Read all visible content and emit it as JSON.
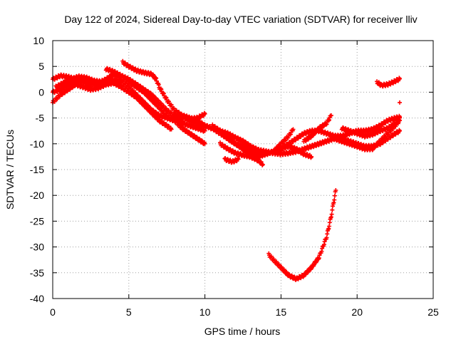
{
  "chart_data": {
    "type": "scatter",
    "title": "Day 122 of 2024, Sidereal Day-to-day VTEC variation (SDTVAR) for receiver lliv",
    "xlabel": "GPS time / hours",
    "ylabel": "SDTVAR / TECUs",
    "xlim": [
      0,
      25
    ],
    "ylim": [
      -40,
      10
    ],
    "xticks": [
      0,
      5,
      10,
      15,
      20,
      25
    ],
    "yticks": [
      10,
      5,
      0,
      -5,
      -10,
      -15,
      -20,
      -25,
      -30,
      -35,
      -40
    ],
    "xtick_labels": [
      "0",
      "5",
      "10",
      "15",
      "20",
      "25"
    ],
    "ytick_labels": [
      "10",
      "5",
      "0",
      "-5",
      "-10",
      "-15",
      "-20",
      "-25",
      "-30",
      "-35",
      "-40"
    ],
    "grid": true,
    "marker": "+",
    "marker_color": "#ff0000",
    "series": [
      {
        "name": "track-a",
        "points": [
          [
            0,
            2.5
          ],
          [
            0.5,
            3.2
          ],
          [
            1,
            3.0
          ],
          [
            1.5,
            2.5
          ],
          [
            2,
            2.0
          ],
          [
            2.5,
            1.5
          ],
          [
            3,
            1.8
          ],
          [
            3.5,
            2.5
          ],
          [
            4,
            3.5
          ],
          [
            4.5,
            3.0
          ],
          [
            5,
            2.0
          ],
          [
            5.5,
            1.0
          ],
          [
            6,
            0
          ],
          [
            6.5,
            -1.5
          ],
          [
            7,
            -3
          ],
          [
            7.5,
            -4.5
          ],
          [
            8,
            -5.5
          ],
          [
            8.5,
            -7
          ],
          [
            9,
            -8
          ],
          [
            9.5,
            -9
          ],
          [
            10,
            -10
          ]
        ]
      },
      {
        "name": "track-b",
        "points": [
          [
            0,
            0
          ],
          [
            0.5,
            0.5
          ],
          [
            1,
            1.5
          ],
          [
            1.5,
            2.2
          ],
          [
            2,
            2.5
          ],
          [
            2.5,
            2.0
          ],
          [
            3,
            1.5
          ],
          [
            3.5,
            2.0
          ],
          [
            4,
            2.5
          ],
          [
            4.5,
            2.0
          ],
          [
            5,
            1.0
          ],
          [
            5.5,
            -0.5
          ],
          [
            6,
            -2
          ],
          [
            6.5,
            -3.5
          ],
          [
            7,
            -4.5
          ],
          [
            7.5,
            -5
          ],
          [
            8,
            -5.5
          ],
          [
            8.5,
            -6
          ],
          [
            9,
            -6.5
          ],
          [
            9.5,
            -7
          ],
          [
            10,
            -7.5
          ]
        ]
      },
      {
        "name": "track-c",
        "points": [
          [
            0,
            -2
          ],
          [
            0.5,
            -0.5
          ],
          [
            1,
            0.5
          ],
          [
            1.5,
            1.5
          ],
          [
            2,
            1.0
          ],
          [
            2.5,
            0.5
          ],
          [
            3,
            0.8
          ],
          [
            3.5,
            1.5
          ],
          [
            4,
            1.8
          ],
          [
            4.5,
            1.0
          ],
          [
            5,
            0
          ],
          [
            5.5,
            -1
          ],
          [
            6,
            -2.5
          ],
          [
            6.5,
            -4
          ],
          [
            7,
            -5.5
          ],
          [
            7.5,
            -6.5
          ],
          [
            7.8,
            -7.2
          ]
        ]
      },
      {
        "name": "track-d",
        "points": [
          [
            0.2,
            1.0
          ],
          [
            0.7,
            1.8
          ],
          [
            1.2,
            2.5
          ],
          [
            1.7,
            3.0
          ],
          [
            2.2,
            2.8
          ],
          [
            2.7,
            2.2
          ],
          [
            3.2,
            2.0
          ]
        ]
      },
      {
        "name": "track-e",
        "points": [
          [
            3.5,
            4.5
          ],
          [
            4,
            4.0
          ],
          [
            4.5,
            3.2
          ],
          [
            5,
            2.5
          ],
          [
            5.5,
            1.5
          ],
          [
            6,
            0.5
          ],
          [
            6.5,
            -0.5
          ],
          [
            7,
            -2
          ],
          [
            7.5,
            -3.5
          ],
          [
            8,
            -4.5
          ],
          [
            8.5,
            -5
          ],
          [
            9,
            -5.2
          ],
          [
            9.5,
            -5
          ],
          [
            10,
            -4.2
          ]
        ]
      },
      {
        "name": "track-f",
        "points": [
          [
            4.6,
            5.8
          ],
          [
            5,
            5.0
          ],
          [
            5.5,
            4.2
          ],
          [
            6,
            3.8
          ],
          [
            6.5,
            3.5
          ],
          [
            6.8,
            2.5
          ],
          [
            7,
            1.0
          ],
          [
            7.5,
            -1.5
          ],
          [
            8,
            -3.5
          ],
          [
            8.5,
            -4.5
          ],
          [
            9,
            -5.5
          ],
          [
            9.5,
            -6
          ],
          [
            10,
            -6.5
          ],
          [
            10.5,
            -7
          ],
          [
            11,
            -7.5
          ],
          [
            11.5,
            -8
          ],
          [
            12,
            -8.8
          ],
          [
            12.5,
            -9.5
          ],
          [
            13,
            -10.5
          ],
          [
            13.5,
            -11.2
          ],
          [
            14,
            -11.5
          ]
        ]
      },
      {
        "name": "track-g",
        "points": [
          [
            8.5,
            -4.5
          ],
          [
            9,
            -5.0
          ],
          [
            9.5,
            -5.5
          ],
          [
            10,
            -6.5
          ],
          [
            10.5,
            -7
          ],
          [
            11,
            -8
          ],
          [
            11.5,
            -9
          ],
          [
            12,
            -10
          ],
          [
            12.5,
            -11
          ],
          [
            13,
            -12
          ],
          [
            13.5,
            -12.5
          ],
          [
            14,
            -12
          ],
          [
            14.5,
            -11.5
          ],
          [
            15,
            -11
          ],
          [
            15.5,
            -10.5
          ],
          [
            16,
            -11
          ],
          [
            16.5,
            -12
          ],
          [
            17,
            -12.5
          ]
        ]
      },
      {
        "name": "track-h",
        "points": [
          [
            10.5,
            -6.5
          ],
          [
            11,
            -7.5
          ],
          [
            11.5,
            -9
          ],
          [
            12,
            -10
          ],
          [
            12.5,
            -10.5
          ],
          [
            13,
            -11.5
          ],
          [
            13.5,
            -12
          ],
          [
            14,
            -12
          ],
          [
            14.5,
            -11.5
          ],
          [
            15,
            -10
          ],
          [
            15.5,
            -8.5
          ],
          [
            15.8,
            -7.2
          ]
        ]
      },
      {
        "name": "track-i",
        "points": [
          [
            11,
            -10
          ],
          [
            11.5,
            -11
          ],
          [
            12,
            -11.8
          ],
          [
            12.5,
            -12.2
          ],
          [
            13,
            -12.5
          ],
          [
            13.5,
            -13.2
          ],
          [
            13.8,
            -14
          ]
        ]
      },
      {
        "name": "track-j",
        "points": [
          [
            11.3,
            -13
          ],
          [
            11.8,
            -13.5
          ],
          [
            12.2,
            -13
          ]
        ]
      },
      {
        "name": "track-k",
        "points": [
          [
            14,
            -11.5
          ],
          [
            14.5,
            -11.8
          ],
          [
            15,
            -12
          ],
          [
            15.5,
            -11.8
          ],
          [
            16,
            -11.5
          ],
          [
            16.5,
            -11
          ],
          [
            17,
            -10.5
          ],
          [
            17.5,
            -10
          ],
          [
            18,
            -9.5
          ],
          [
            18.5,
            -9
          ],
          [
            19,
            -9
          ],
          [
            19.5,
            -9.5
          ],
          [
            20,
            -10
          ],
          [
            20.5,
            -10.5
          ],
          [
            21,
            -10.5
          ],
          [
            21.5,
            -10
          ],
          [
            22,
            -9
          ],
          [
            22.5,
            -8
          ],
          [
            22.8,
            -7.5
          ]
        ]
      },
      {
        "name": "track-l",
        "points": [
          [
            15,
            -11
          ],
          [
            15.5,
            -10
          ],
          [
            16,
            -9
          ],
          [
            16.5,
            -8
          ],
          [
            17,
            -7.5
          ],
          [
            17.5,
            -7.5
          ],
          [
            18,
            -8
          ],
          [
            18.5,
            -8.5
          ],
          [
            19,
            -8.5
          ],
          [
            19.5,
            -8
          ],
          [
            20,
            -7.5
          ],
          [
            20.5,
            -7.5
          ],
          [
            21,
            -7.2
          ],
          [
            21.5,
            -6.5
          ],
          [
            22,
            -5.5
          ],
          [
            22.5,
            -5
          ],
          [
            22.8,
            -4.8
          ]
        ]
      },
      {
        "name": "track-m",
        "points": [
          [
            16.5,
            -9.5
          ],
          [
            17,
            -8.5
          ],
          [
            17.5,
            -7
          ],
          [
            18,
            -6
          ],
          [
            18.3,
            -4.5
          ]
        ]
      },
      {
        "name": "track-n",
        "points": [
          [
            18.5,
            -9
          ],
          [
            19,
            -9.5
          ],
          [
            19.5,
            -10
          ],
          [
            20,
            -10.5
          ],
          [
            20.5,
            -11
          ],
          [
            21,
            -11
          ],
          [
            21.5,
            -9.5
          ],
          [
            22,
            -8
          ],
          [
            22.5,
            -6.5
          ],
          [
            22.8,
            -5.5
          ]
        ]
      },
      {
        "name": "track-o",
        "points": [
          [
            19,
            -7
          ],
          [
            19.5,
            -7.5
          ],
          [
            20,
            -8
          ],
          [
            20.5,
            -8.5
          ],
          [
            21,
            -8.2
          ],
          [
            21.5,
            -7.5
          ],
          [
            22,
            -7
          ],
          [
            22.5,
            -6
          ],
          [
            22.8,
            -5
          ]
        ]
      },
      {
        "name": "track-p",
        "points": [
          [
            21.3,
            2.0
          ],
          [
            21.6,
            1.3
          ],
          [
            22,
            1.5
          ],
          [
            22.4,
            2.0
          ],
          [
            22.8,
            2.6
          ]
        ]
      },
      {
        "name": "track-q",
        "points": [
          [
            22.8,
            -2.0
          ]
        ]
      },
      {
        "name": "track-r",
        "points": [
          [
            14.2,
            -31.5
          ],
          [
            14.5,
            -32.5
          ],
          [
            15,
            -34
          ],
          [
            15.5,
            -35.5
          ],
          [
            16,
            -36.2
          ],
          [
            16.5,
            -35.5
          ],
          [
            17,
            -34
          ],
          [
            17.5,
            -32
          ],
          [
            18,
            -28
          ],
          [
            18.3,
            -24
          ],
          [
            18.6,
            -19
          ]
        ]
      }
    ]
  }
}
